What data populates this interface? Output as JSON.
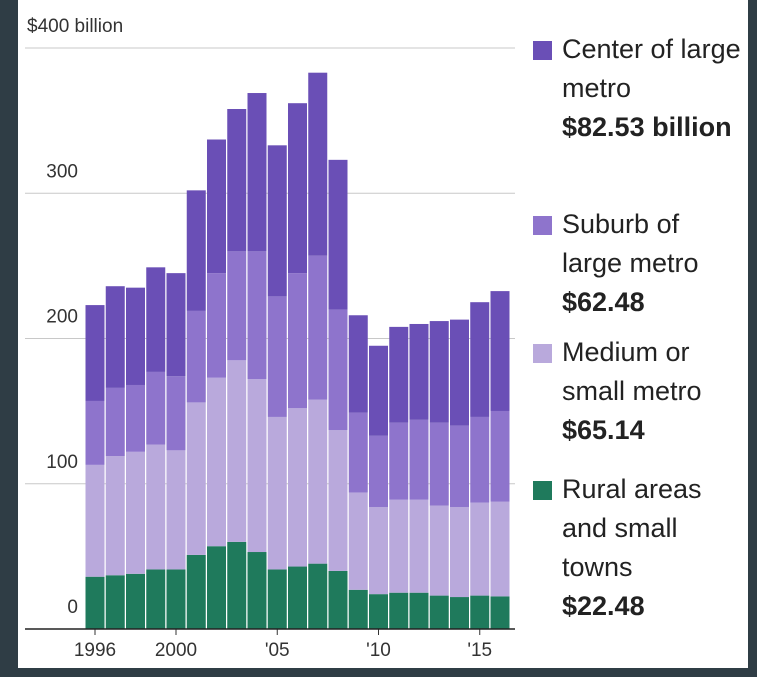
{
  "chart_data": {
    "type": "stacked_bar",
    "categories": [
      "1996",
      null,
      null,
      null,
      "2000",
      null,
      null,
      null,
      null,
      "'05",
      null,
      null,
      null,
      null,
      "'10",
      null,
      null,
      null,
      null,
      "'15",
      null
    ],
    "series": [
      {
        "name": "Center of large metro",
        "color": "#6a4fb6",
        "last_value_label": "$82.53 billion",
        "values": [
          66,
          70,
          67,
          72,
          71,
          83,
          92,
          98,
          109,
          104,
          117,
          126,
          103,
          67,
          62,
          66,
          66,
          70,
          73,
          79,
          82.53
        ]
      },
      {
        "name": "Suburb of large metro",
        "color": "#8e74cc",
        "last_value_label": "$62.48",
        "values": [
          44,
          47,
          46,
          50,
          51,
          63,
          72,
          75,
          88,
          83,
          93,
          99,
          83,
          55,
          49,
          53,
          55,
          57,
          56,
          59,
          62.48
        ]
      },
      {
        "name": "Medium or small metro",
        "color": "#b9a9dc",
        "last_value_label": "$65.14",
        "values": [
          77,
          82,
          84,
          86,
          82,
          105,
          116,
          125,
          119,
          105,
          109,
          113,
          97,
          67,
          60,
          64,
          64,
          62,
          62,
          64,
          65.14
        ]
      },
      {
        "name": "Rural areas and small towns",
        "color": "#1f7a5c",
        "last_value_label": "$22.48",
        "values": [
          36,
          37,
          38,
          41,
          41,
          51,
          57,
          60,
          53,
          41,
          43,
          45,
          40,
          27,
          24,
          25,
          25,
          23,
          22,
          23,
          22.48
        ]
      }
    ],
    "ylim": [
      0,
      400
    ],
    "yticks": [
      0,
      100,
      200,
      300,
      {
        "value": 400,
        "label": "$400 billion"
      }
    ],
    "grid": true
  }
}
